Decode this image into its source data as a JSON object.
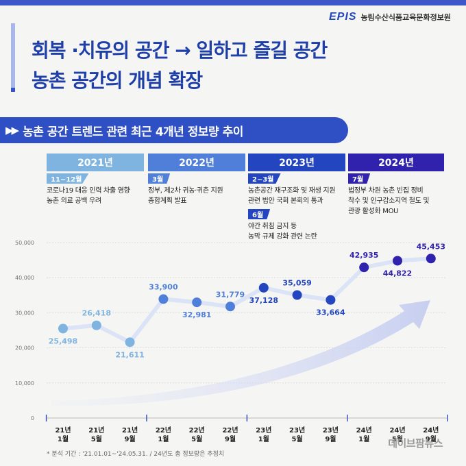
{
  "header": {
    "logo": "EPIS",
    "org": "농림수산식품교육문화정보원"
  },
  "title": {
    "line1": "회복 ·치유의 공간 → 일하고 즐길 공간",
    "line2": "농촌 공간의 개념 확장"
  },
  "banner": {
    "text": "농촌 공간 트렌드 관련 최근 4개년 정보량 추이"
  },
  "years": [
    {
      "label": "2021년",
      "color": "#7fb3e0"
    },
    {
      "label": "2022년",
      "color": "#4f7fd8"
    },
    {
      "label": "2023년",
      "color": "#2346c0"
    },
    {
      "label": "2024년",
      "color": "#3122ad"
    }
  ],
  "events": [
    {
      "badge": "11~12월",
      "text": "코로나19 대응 인력 차출 영향\n농촌 의료 공백 우려",
      "color": "#7fb3e0"
    },
    {
      "badge": "3월",
      "text": "정부, 제2차 귀농·귀촌 지원\n종합계획 발표",
      "color": "#4f7fd8"
    },
    {
      "badge": "2~3월",
      "text": "농촌공간 재구조화 및 재생 지원\n관련 법안 국회 본회의 통과",
      "color": "#2346c0"
    },
    {
      "badge": "6월",
      "text": "야간 취침 금지 등\n농막 규제 강화 관련 논란",
      "color": "#2346c0"
    },
    {
      "badge": "7월",
      "text": "법정부 차원 농촌 빈집 정비\n착수 및 인구감소지역 철도 및\n관광 활성화 MOU",
      "color": "#3122ad"
    }
  ],
  "chart_data": {
    "type": "line",
    "categories": [
      "21년\n1월",
      "21년\n5월",
      "21년\n9월",
      "22년\n1월",
      "22년\n5월",
      "22년\n9월",
      "23년\n1월",
      "23년\n5월",
      "23년\n9월",
      "24년\n1월",
      "24년\n5월",
      "24년\n9월"
    ],
    "values": [
      25498,
      26418,
      21611,
      33900,
      32981,
      31779,
      37128,
      35059,
      33664,
      42935,
      44822,
      45453
    ],
    "value_labels": [
      "25,498",
      "26,418",
      "21,611",
      "33,900",
      "32,981",
      "31,779",
      "37,128",
      "35,059",
      "33,664",
      "42,935",
      "44,822",
      "45,453"
    ],
    "yticks": [
      0,
      10000,
      20000,
      30000,
      40000,
      50000
    ],
    "ytick_labels": [
      "0",
      "10,000",
      "20,000",
      "30,000",
      "40,000",
      "50,000"
    ],
    "ylim": [
      0,
      50000
    ],
    "grid": true,
    "point_colors": [
      "#7fb3e0",
      "#7fb3e0",
      "#7fb3e0",
      "#4f7fd8",
      "#4f7fd8",
      "#4f7fd8",
      "#2346c0",
      "#2346c0",
      "#2346c0",
      "#3122ad",
      "#3122ad",
      "#3122ad"
    ]
  },
  "footnote": "* 분석 기간 : '21.01.01~'24.05.31. / 24년도 총 정보량은 추정치",
  "watermark": "데이브팜뉴스"
}
